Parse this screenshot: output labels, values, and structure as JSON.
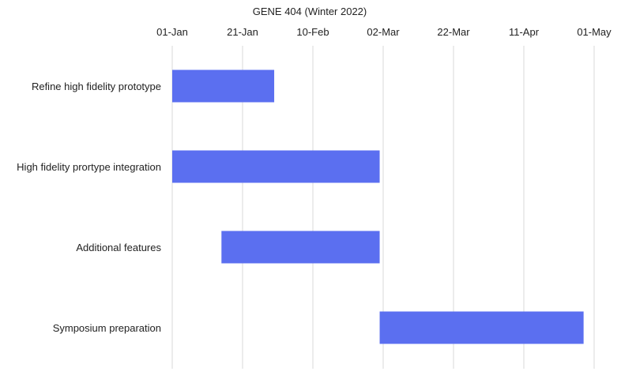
{
  "chart_data": {
    "type": "bar",
    "orientation": "horizontal",
    "subtype": "gantt",
    "title": "GENE 404 (Winter 2022)",
    "x_axis_position": "top",
    "xlim": [
      "2022-01-01",
      "2022-05-01"
    ],
    "x_ticks": [
      "01-Jan",
      "21-Jan",
      "10-Feb",
      "02-Mar",
      "22-Mar",
      "11-Apr",
      "01-May"
    ],
    "x_tick_dates": [
      "2022-01-01",
      "2022-01-21",
      "2022-02-10",
      "2022-03-02",
      "2022-03-22",
      "2022-04-11",
      "2022-05-01"
    ],
    "grid": "vertical",
    "bar_color": "#5b6ff0",
    "tasks": [
      {
        "name": "Refine high fidelity prototype",
        "start": "2022-01-01",
        "end": "2022-01-30"
      },
      {
        "name": "High fidelity prortype integration",
        "start": "2022-01-01",
        "end": "2022-03-01"
      },
      {
        "name": "Additional features",
        "start": "2022-01-15",
        "end": "2022-03-01"
      },
      {
        "name": "Symposium preparation",
        "start": "2022-03-01",
        "end": "2022-04-28"
      }
    ]
  }
}
